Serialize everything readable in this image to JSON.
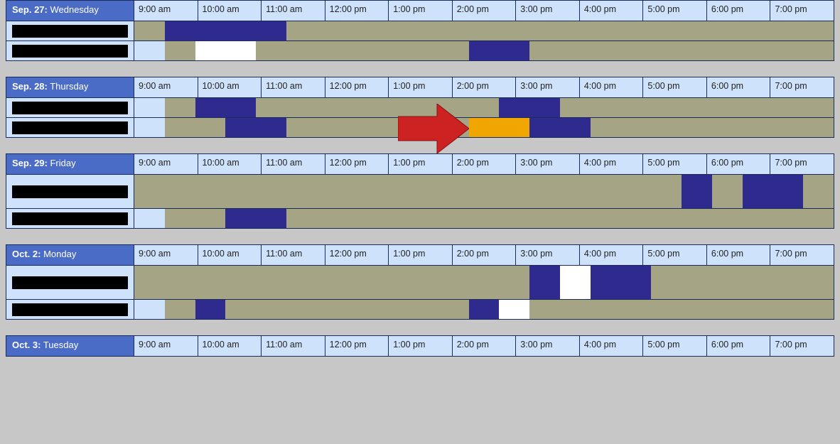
{
  "timeline": {
    "start_hour": 8.5,
    "end_hour": 20.0,
    "time_labels": [
      "9:00 am",
      "10:00 am",
      "11:00 am",
      "12:00 pm",
      "1:00 pm",
      "2:00 pm",
      "3:00 pm",
      "4:00 pm",
      "5:00 pm",
      "6:00 pm",
      "7:00 pm"
    ],
    "colors": {
      "header_date_bg": "#4a6cc7",
      "header_time_bg": "#cfe2fb",
      "border": "#1a2a5a",
      "timeline_bg": "#a5a585",
      "busy": "#2e2a8e",
      "free": "#ffffff",
      "highlight": "#f0a500",
      "page_bg": "#c7c7c7",
      "redacted": "#000000",
      "arrow": "#cc2222"
    }
  },
  "days": [
    {
      "date_bold": "Sep. 27:",
      "date_rest": " Wednesday",
      "rows": [
        {
          "tall": false,
          "segments": [
            {
              "type": "busy",
              "from": 9.0,
              "to": 11.0
            }
          ]
        },
        {
          "tall": false,
          "segments": [
            {
              "type": "avail-left",
              "from": 8.5,
              "to": 9.0
            },
            {
              "type": "free",
              "from": 9.5,
              "to": 10.5
            },
            {
              "type": "busy",
              "from": 14.0,
              "to": 15.0
            }
          ]
        }
      ]
    },
    {
      "date_bold": "Sep. 28:",
      "date_rest": " Thursday",
      "rows": [
        {
          "tall": false,
          "segments": [
            {
              "type": "avail-left",
              "from": 8.5,
              "to": 9.0
            },
            {
              "type": "busy",
              "from": 9.5,
              "to": 10.5
            },
            {
              "type": "busy",
              "from": 14.5,
              "to": 15.5
            }
          ]
        },
        {
          "tall": false,
          "segments": [
            {
              "type": "avail-left",
              "from": 8.5,
              "to": 9.0
            },
            {
              "type": "busy",
              "from": 10.0,
              "to": 11.0
            },
            {
              "type": "highlight",
              "from": 14.0,
              "to": 15.0
            },
            {
              "type": "busy",
              "from": 15.0,
              "to": 16.0
            }
          ],
          "arrow_at_hour": 14.0
        }
      ]
    },
    {
      "date_bold": "Sep. 29:",
      "date_rest": " Friday",
      "rows": [
        {
          "tall": true,
          "segments": [
            {
              "type": "busy",
              "from": 17.5,
              "to": 18.0
            },
            {
              "type": "busy",
              "from": 18.5,
              "to": 19.5
            }
          ]
        },
        {
          "tall": false,
          "segments": [
            {
              "type": "avail-left",
              "from": 8.5,
              "to": 9.0
            },
            {
              "type": "busy",
              "from": 10.0,
              "to": 11.0
            }
          ]
        }
      ]
    },
    {
      "date_bold": "Oct. 2:",
      "date_rest": " Monday",
      "rows": [
        {
          "tall": true,
          "segments": [
            {
              "type": "busy",
              "from": 15.0,
              "to": 15.5
            },
            {
              "type": "free",
              "from": 15.5,
              "to": 16.0
            },
            {
              "type": "busy",
              "from": 16.0,
              "to": 17.0
            }
          ]
        },
        {
          "tall": false,
          "segments": [
            {
              "type": "avail-left",
              "from": 8.5,
              "to": 9.0
            },
            {
              "type": "busy",
              "from": 9.5,
              "to": 10.0
            },
            {
              "type": "busy",
              "from": 14.0,
              "to": 14.5
            },
            {
              "type": "free",
              "from": 14.5,
              "to": 15.0
            }
          ]
        }
      ]
    },
    {
      "date_bold": "Oct. 3:",
      "date_rest": " Tuesday",
      "rows": []
    }
  ]
}
